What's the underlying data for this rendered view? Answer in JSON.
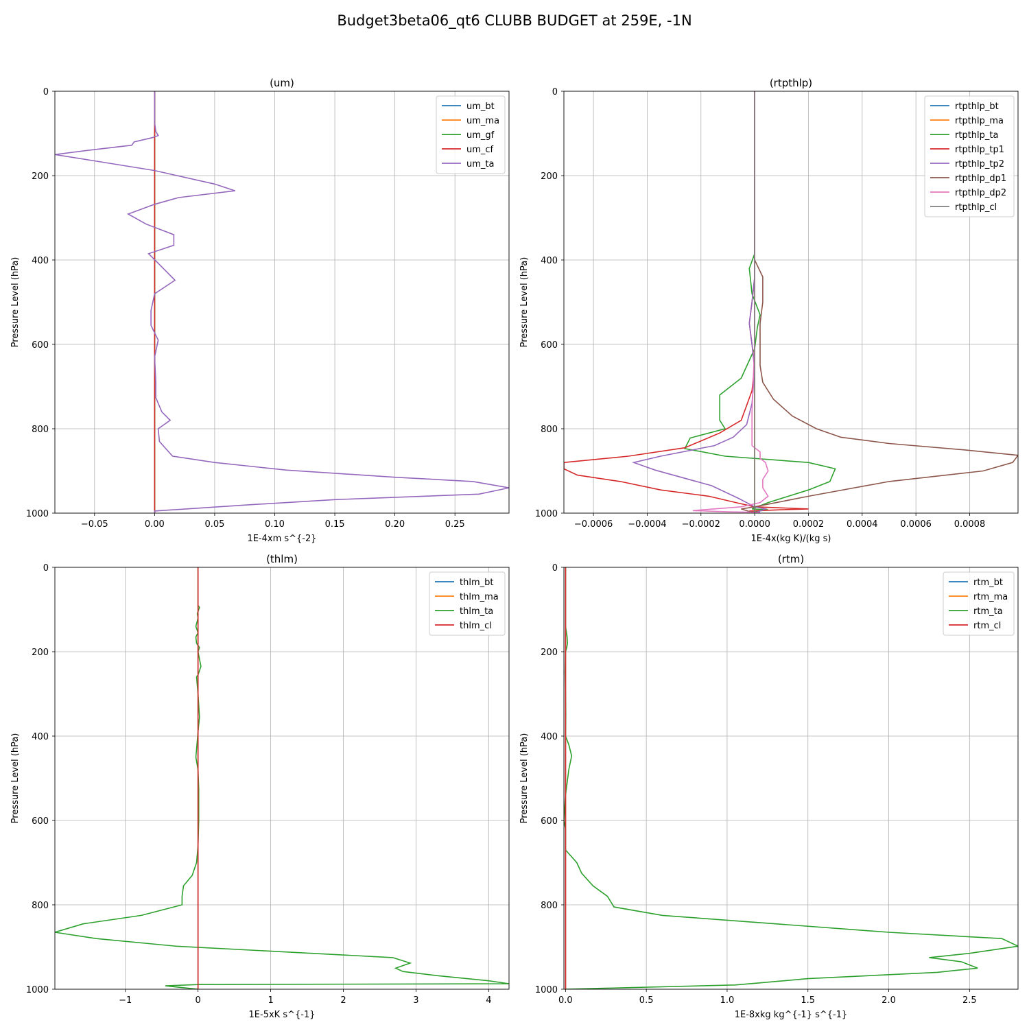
{
  "title": "Budget3beta06_qt6 CLUBB BUDGET at 259E, -1N",
  "chart_data": [
    {
      "type": "line",
      "title": "(um)",
      "xlabel": "1E-4xm s^{-2}",
      "ylabel": "Pressure Level (hPa)",
      "xlim": [
        -0.083,
        0.295
      ],
      "ylim": [
        1000,
        0
      ],
      "xticks": [
        -0.05,
        0.0,
        0.05,
        0.1,
        0.15,
        0.2,
        0.25
      ],
      "xtick_labels": [
        "−0.05",
        "0.00",
        "0.05",
        "0.10",
        "0.15",
        "0.20",
        "0.25"
      ],
      "yticks": [
        0,
        200,
        400,
        600,
        800,
        1000
      ],
      "grid": true,
      "legend_position": "top-right",
      "series": [
        {
          "name": "um_bt",
          "color": "#1f77b4",
          "x": [
            0,
            0
          ],
          "y": [
            0,
            1000
          ]
        },
        {
          "name": "um_ma",
          "color": "#ff7f0e",
          "x": [
            0,
            0
          ],
          "y": [
            0,
            1000
          ]
        },
        {
          "name": "um_gf",
          "color": "#2ca02c",
          "x": [
            0,
            0
          ],
          "y": [
            0,
            1000
          ]
        },
        {
          "name": "um_cf",
          "color": "#d62728",
          "x": [
            0,
            0
          ],
          "y": [
            0,
            1000
          ]
        },
        {
          "name": "um_ta",
          "color": "#9467bd",
          "x": [
            0.0,
            0.0,
            0.001,
            0.003,
            -0.002,
            -0.017,
            -0.019,
            -0.055,
            -0.083,
            -0.05,
            0.0,
            0.05,
            0.067,
            0.02,
            0.0,
            -0.022,
            -0.007,
            0.016,
            0.016,
            -0.005,
            0.002,
            0.017,
            0.0,
            -0.003,
            -0.003,
            0.003,
            0.0,
            0.001,
            0.001,
            0.006,
            0.013,
            0.003,
            0.004,
            0.015,
            0.05,
            0.11,
            0.2,
            0.265,
            0.295,
            0.27,
            0.15,
            0.08,
            0.0,
            0.0
          ],
          "y": [
            0,
            75,
            95,
            105,
            110,
            120,
            128,
            140,
            150,
            165,
            188,
            220,
            236,
            252,
            268,
            291,
            315,
            340,
            365,
            385,
            405,
            448,
            480,
            520,
            555,
            590,
            630,
            690,
            726,
            760,
            780,
            800,
            830,
            865,
            880,
            898,
            915,
            925,
            940,
            955,
            968,
            980,
            995,
            1000
          ]
        }
      ]
    },
    {
      "type": "line",
      "title": "(rtpthlp)",
      "xlabel": "1E-4x(kg K)/(kg s)",
      "ylabel": "Pressure Level (hPa)",
      "xlim": [
        -0.00071,
        0.00098
      ],
      "ylim": [
        1000,
        0
      ],
      "xticks": [
        -0.0006,
        -0.0004,
        -0.0002,
        0.0,
        0.0002,
        0.0004,
        0.0006,
        0.0008
      ],
      "xtick_labels": [
        "−0.0006",
        "−0.0004",
        "−0.0002",
        "0.0000",
        "0.0002",
        "0.0004",
        "0.0006",
        "0.0008"
      ],
      "yticks": [
        0,
        200,
        400,
        600,
        800,
        1000
      ],
      "grid": true,
      "legend_position": "top-right",
      "series": [
        {
          "name": "rtpthlp_bt",
          "color": "#1f77b4",
          "x": [
            0,
            0
          ],
          "y": [
            0,
            1000
          ]
        },
        {
          "name": "rtpthlp_ma",
          "color": "#ff7f0e",
          "x": [
            0,
            0
          ],
          "y": [
            0,
            1000
          ]
        },
        {
          "name": "rtpthlp_ta",
          "color": "#2ca02c",
          "x": [
            0.0,
            0.0,
            -2e-05,
            -1e-05,
            2e-05,
            1e-05,
            0.0,
            -5e-05,
            -0.00013,
            -0.00013,
            -0.00011,
            -0.00024,
            -0.00026,
            -0.00011,
            0.0002,
            0.0003,
            0.00029,
            0.00028,
            0.0002,
            5e-05,
            -1e-05,
            5e-05,
            -1e-05,
            0.0
          ],
          "y": [
            0,
            385,
            420,
            480,
            530,
            560,
            610,
            680,
            720,
            780,
            800,
            822,
            847,
            865,
            880,
            895,
            910,
            925,
            945,
            975,
            990,
            992,
            997,
            1000
          ]
        },
        {
          "name": "rtpthlp_tp1",
          "color": "#d62728",
          "x": [
            0.0,
            0.0,
            -1e-05,
            -2e-05,
            -1e-05,
            0.0,
            -1e-05,
            -5e-05,
            -0.00013,
            -0.00026,
            -0.00047,
            -0.00071,
            -0.00071,
            -0.00066,
            -0.0005,
            -0.00035,
            -0.00017,
            -7e-05,
            0.0,
            0.0002,
            0.0001,
            -2e-05,
            0.0
          ],
          "y": [
            0,
            440,
            500,
            550,
            600,
            650,
            710,
            780,
            810,
            845,
            865,
            880,
            895,
            910,
            925,
            945,
            960,
            975,
            985,
            990,
            992,
            995,
            1000
          ]
        },
        {
          "name": "rtpthlp_tp2",
          "color": "#9467bd",
          "x": [
            0.0,
            0.0,
            -1e-05,
            -2e-05,
            -1e-05,
            0.0,
            -1e-05,
            -3e-05,
            -8e-05,
            -0.00015,
            -0.00035,
            -0.00045,
            -0.00037,
            -0.00016,
            -6e-05,
            0.0,
            4e-05,
            0.0
          ],
          "y": [
            0,
            440,
            500,
            550,
            600,
            660,
            740,
            790,
            820,
            840,
            865,
            880,
            898,
            935,
            965,
            985,
            990,
            1000
          ]
        },
        {
          "name": "rtpthlp_dp1",
          "color": "#8c564b",
          "x": [
            0.0,
            0.0,
            3e-05,
            3e-05,
            2e-05,
            2e-05,
            2e-05,
            3e-05,
            7e-05,
            0.00014,
            0.00023,
            0.00032,
            0.0005,
            0.00078,
            0.00098,
            0.00096,
            0.00085,
            0.0005,
            0.0002,
            0.0,
            -5e-05,
            0.0
          ],
          "y": [
            0,
            400,
            440,
            500,
            550,
            600,
            650,
            690,
            730,
            770,
            800,
            820,
            835,
            850,
            863,
            880,
            900,
            925,
            960,
            985,
            990,
            1000
          ]
        },
        {
          "name": "rtpthlp_dp2",
          "color": "#e377c2",
          "x": [
            0.0,
            0.0,
            -1e-05,
            -1e-05,
            2e-05,
            2e-05,
            4e-05,
            5e-05,
            3e-05,
            3e-05,
            5e-05,
            2e-05,
            -5e-05,
            -0.00023,
            -9e-05,
            2e-05,
            0.0
          ],
          "y": [
            0,
            600,
            760,
            840,
            855,
            870,
            880,
            900,
            920,
            940,
            960,
            975,
            985,
            994,
            997,
            998,
            1000
          ]
        },
        {
          "name": "rtpthlp_cl",
          "color": "#7f7f7f",
          "x": [
            0,
            0
          ],
          "y": [
            0,
            1000
          ]
        }
      ]
    },
    {
      "type": "line",
      "title": "(thlm)",
      "xlabel": "1E-5xK s^{-1}",
      "ylabel": "Pressure Level (hPa)",
      "xlim": [
        -1.97,
        4.28
      ],
      "ylim": [
        1000,
        0
      ],
      "xticks": [
        -1,
        0,
        1,
        2,
        3,
        4
      ],
      "xtick_labels": [
        "−1",
        "0",
        "1",
        "2",
        "3",
        "4"
      ],
      "yticks": [
        0,
        200,
        400,
        600,
        800,
        1000
      ],
      "grid": true,
      "legend_position": "top-right",
      "series": [
        {
          "name": "thlm_bt",
          "color": "#1f77b4",
          "x": [
            0,
            0
          ],
          "y": [
            0,
            1000
          ]
        },
        {
          "name": "thlm_ma",
          "color": "#ff7f0e",
          "x": [
            0,
            0
          ],
          "y": [
            0,
            1000
          ]
        },
        {
          "name": "thlm_ta",
          "color": "#2ca02c",
          "x": [
            0.0,
            0.0,
            0.02,
            -0.01,
            0.0,
            -0.03,
            0.0,
            -0.03,
            -0.02,
            0.02,
            0.0,
            0.04,
            0.0,
            -0.02,
            0.0,
            0.02,
            0.0,
            -0.03,
            0.0,
            0.01,
            0.01,
            0.0,
            -0.02,
            -0.08,
            -0.2,
            -0.22,
            -0.22,
            -0.78,
            -1.58,
            -1.97,
            -1.4,
            -0.3,
            2.68,
            2.92,
            2.72,
            2.82,
            3.3,
            4.0,
            4.28,
            0.0,
            -0.45,
            0.0
          ],
          "y": [
            0,
            90,
            95,
            110,
            120,
            140,
            155,
            165,
            180,
            190,
            200,
            235,
            255,
            260,
            300,
            355,
            390,
            450,
            480,
            525,
            600,
            660,
            700,
            730,
            755,
            780,
            800,
            825,
            845,
            865,
            880,
            898,
            925,
            938,
            950,
            958,
            968,
            980,
            987,
            989,
            992,
            1000
          ]
        },
        {
          "name": "thlm_cl",
          "color": "#d62728",
          "x": [
            0,
            0
          ],
          "y": [
            0,
            1000
          ]
        }
      ]
    },
    {
      "type": "line",
      "title": "(rtm)",
      "xlabel": "1E-8xkg kg^{-1} s^{-1}",
      "ylabel": "Pressure Level (hPa)",
      "xlim": [
        -0.01,
        2.8
      ],
      "ylim": [
        1000,
        0
      ],
      "xticks": [
        0.0,
        0.5,
        1.0,
        1.5,
        2.0,
        2.5
      ],
      "xtick_labels": [
        "0.0",
        "0.5",
        "1.0",
        "1.5",
        "2.0",
        "2.5"
      ],
      "yticks": [
        0,
        200,
        400,
        600,
        800,
        1000
      ],
      "grid": true,
      "legend_position": "top-right",
      "series": [
        {
          "name": "rtm_bt",
          "color": "#1f77b4",
          "x": [
            0,
            0
          ],
          "y": [
            0,
            1000
          ]
        },
        {
          "name": "rtm_ma",
          "color": "#ff7f0e",
          "x": [
            0,
            0
          ],
          "y": [
            0,
            1000
          ]
        },
        {
          "name": "rtm_ta",
          "color": "#2ca02c",
          "x": [
            0.0,
            0.0,
            0.01,
            0.012,
            0.008,
            0.0,
            -0.002,
            0.0,
            0.002,
            0.0,
            0.02,
            0.038,
            0.02,
            0.0,
            -0.01,
            0.0,
            0.0,
            0.07,
            0.1,
            0.17,
            0.26,
            0.3,
            0.6,
            1.3,
            2.0,
            2.7,
            2.8,
            2.5,
            2.25,
            2.45,
            2.55,
            2.3,
            1.5,
            1.2,
            1.05,
            0.0
          ],
          "y": [
            0,
            140,
            165,
            180,
            190,
            200,
            250,
            300,
            350,
            400,
            420,
            447,
            480,
            540,
            600,
            620,
            670,
            700,
            725,
            755,
            780,
            805,
            825,
            845,
            865,
            880,
            898,
            915,
            925,
            935,
            950,
            960,
            975,
            985,
            990,
            1000
          ]
        },
        {
          "name": "rtm_cl",
          "color": "#d62728",
          "x": [
            0,
            0
          ],
          "y": [
            0,
            1000
          ]
        }
      ]
    }
  ]
}
